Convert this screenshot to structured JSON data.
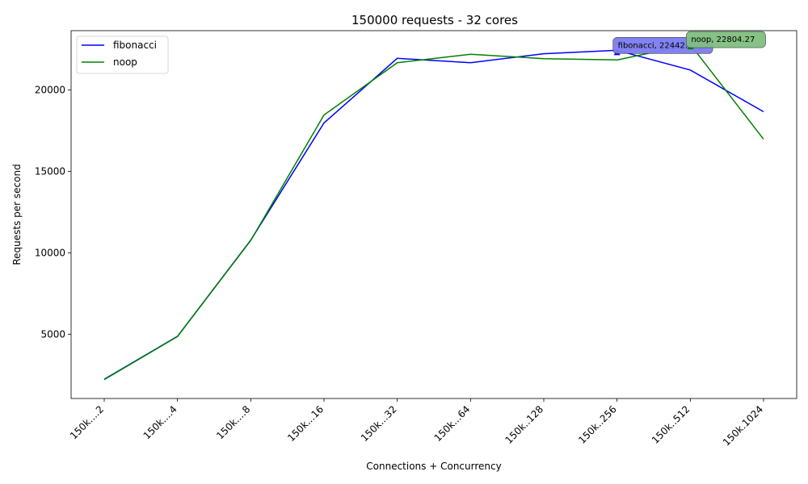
{
  "chart_data": {
    "type": "line",
    "title": "150000 requests - 32 cores",
    "xlabel": "Connections + Concurrency",
    "ylabel": "Requests per second",
    "categories": [
      "150k....2",
      "150k....4",
      "150k....8",
      "150k...16",
      "150k...32",
      "150k...64",
      "150k..128",
      "150k..256",
      "150k..512",
      "150k.1024"
    ],
    "ylim": [
      1050,
      23650
    ],
    "yticks": [
      5000,
      10000,
      15000,
      20000
    ],
    "grid": false,
    "legend_position": "top-left",
    "series": [
      {
        "name": "fibonacci",
        "color": "#0000ff",
        "values": [
          2230,
          4870,
          10780,
          17980,
          21950,
          21680,
          22230,
          22442.7,
          21230,
          18670
        ]
      },
      {
        "name": "noop",
        "color": "#008000",
        "values": [
          2210,
          4860,
          10760,
          18470,
          21680,
          22200,
          21930,
          21850,
          22804.27,
          16980
        ]
      }
    ],
    "annotations": [
      {
        "text": "fibonacci, 22442.7",
        "series": "fibonacci",
        "category_index": 7,
        "color": "#7b7bf0"
      },
      {
        "text": "noop, 22804.27",
        "series": "noop",
        "category_index": 8,
        "color": "#7fbf7f"
      }
    ]
  }
}
